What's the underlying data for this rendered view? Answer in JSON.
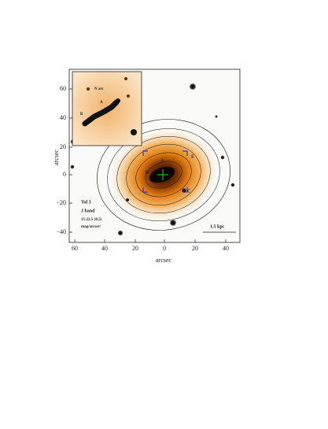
{
  "figure": {
    "x_ticks": [
      "60",
      "40",
      "20",
      "0",
      "20",
      "40"
    ],
    "y_ticks": [
      "60",
      "40",
      "20",
      "0",
      "−20",
      "−40"
    ],
    "x_label": "arcsec",
    "y_label": "arcsec",
    "inset_labels": [
      "N arc",
      "A",
      "B"
    ],
    "labels": [
      "A",
      "B",
      "C",
      "E"
    ],
    "legend": [
      "Tol 3",
      "J band",
      "15-22.5 (0.5)",
      "mag/arcsec²"
    ],
    "scale_bar": "1.5 kpc"
  }
}
